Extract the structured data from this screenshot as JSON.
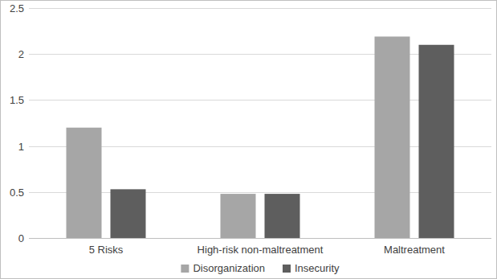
{
  "chart_data": {
    "type": "bar",
    "categories": [
      "5 Risks",
      "High-risk non-maltreatment",
      "Maltreatment"
    ],
    "series": [
      {
        "name": "Disorganization",
        "color": "#a6a6a6",
        "values": [
          1.2,
          0.48,
          2.19
        ]
      },
      {
        "name": "Insecurity",
        "color": "#5e5e5e",
        "values": [
          0.53,
          0.48,
          2.1
        ]
      }
    ],
    "ylim": [
      0,
      2.5
    ],
    "yticks": [
      0,
      0.5,
      1,
      1.5,
      2,
      2.5
    ],
    "grid": true,
    "legend": "bottom"
  }
}
